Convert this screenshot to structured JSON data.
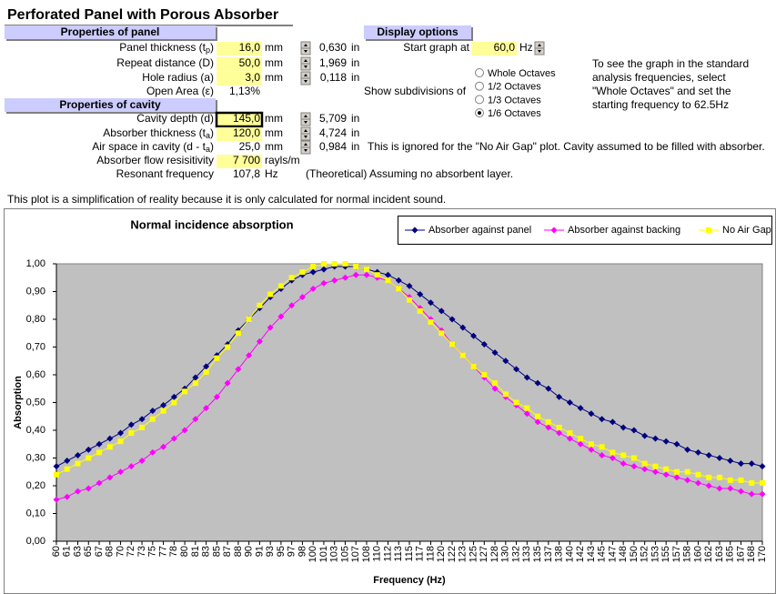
{
  "title": "Perforated Panel with Porous Absorber",
  "panel": {
    "header": "Properties of panel",
    "rows": [
      {
        "label": "Panel thickness (t",
        "sub": "p",
        "label_end": ")",
        "value": "16,0",
        "unit": "mm",
        "inches": "0,630",
        "inch_unit": "in"
      },
      {
        "label": "Repeat distance (D)",
        "value": "50,0",
        "unit": "mm",
        "inches": "1,969",
        "inch_unit": "in"
      },
      {
        "label": "Hole radius (a)",
        "value": "3,0",
        "unit": "mm",
        "inches": "0,118",
        "inch_unit": "in"
      },
      {
        "label": "Open Area (ε)",
        "value": "1,13%"
      }
    ]
  },
  "cavity": {
    "header": "Properties of cavity",
    "rows": [
      {
        "label": "Cavity depth (d)",
        "value": "145,0",
        "unit": "mm",
        "inches": "5,709",
        "inch_unit": "in"
      },
      {
        "label": "Absorber thickness (t",
        "sub": "a",
        "label_end": ")",
        "value": "120,0",
        "unit": "mm",
        "inches": "4,724",
        "inch_unit": "in"
      },
      {
        "label": "Air space in cavity (d - t",
        "sub": "a",
        "label_end": ")",
        "value": "25,0",
        "unit": "mm",
        "inches": "0,984",
        "inch_unit": "in",
        "note": "This is ignored for the \"No Air Gap\" plot.  Cavity assumed to be filled with absorber."
      },
      {
        "label": "Absorber flow resisitivity",
        "value": "7 700",
        "unit": "rayls/m"
      },
      {
        "label": "Resonant frequency",
        "value": "107,8",
        "unit": "Hz",
        "note": "(Theoretical) Assuming no absorbent layer."
      }
    ]
  },
  "display": {
    "header": "Display options",
    "start_label": "Start graph at",
    "start_value": "60,0",
    "start_unit": "Hz",
    "subdivisions_label": "Show subdivisions of",
    "options": [
      {
        "label": "Whole Octaves",
        "checked": false
      },
      {
        "label": "1/2 Octaves",
        "checked": false
      },
      {
        "label": "1/3 Octaves",
        "checked": false
      },
      {
        "label": "1/6 Octaves",
        "checked": true
      }
    ],
    "note_lines": [
      "To see the graph in the standard",
      "analysis frequencies, select",
      "\"Whole Octaves\" and set the",
      "starting frequency to 62.5Hz"
    ]
  },
  "footnote": "This plot is a simplification of reality because it is only calculated for normal incident sound.",
  "chart_data": {
    "type": "line",
    "title": "Normal incidence absorption",
    "x_label": "Frequency (Hz)",
    "y_label": "Absorption",
    "categories": [
      "60",
      "61",
      "63",
      "65",
      "67",
      "68",
      "70",
      "72",
      "73",
      "75",
      "77",
      "78",
      "80",
      "81",
      "83",
      "85",
      "87",
      "88",
      "90",
      "91",
      "93",
      "95",
      "97",
      "98",
      "100",
      "101",
      "103",
      "105",
      "107",
      "108",
      "110",
      "112",
      "113",
      "115",
      "117",
      "118",
      "120",
      "122",
      "123",
      "125",
      "127",
      "128",
      "130",
      "132",
      "133",
      "135",
      "137",
      "138",
      "140",
      "142",
      "143",
      "145",
      "147",
      "148",
      "150",
      "152",
      "153",
      "155",
      "157",
      "158",
      "160",
      "162",
      "163",
      "165",
      "167",
      "168",
      "170"
    ],
    "series": [
      {
        "name": "Absorber against panel",
        "color": "#000080",
        "marker": "diamond",
        "values": [
          0.27,
          0.29,
          0.31,
          0.33,
          0.35,
          0.37,
          0.39,
          0.42,
          0.44,
          0.47,
          0.49,
          0.52,
          0.55,
          0.59,
          0.63,
          0.67,
          0.71,
          0.76,
          0.8,
          0.84,
          0.88,
          0.91,
          0.94,
          0.96,
          0.97,
          0.98,
          0.99,
          0.99,
          0.99,
          0.98,
          0.97,
          0.96,
          0.94,
          0.92,
          0.89,
          0.86,
          0.83,
          0.8,
          0.77,
          0.74,
          0.71,
          0.68,
          0.65,
          0.62,
          0.59,
          0.57,
          0.55,
          0.52,
          0.5,
          0.48,
          0.46,
          0.44,
          0.43,
          0.41,
          0.4,
          0.38,
          0.37,
          0.36,
          0.35,
          0.33,
          0.32,
          0.31,
          0.3,
          0.29,
          0.28,
          0.28,
          0.27
        ]
      },
      {
        "name": "Absorber against backing",
        "color": "#ff00ff",
        "marker": "diamond",
        "values": [
          0.15,
          0.16,
          0.18,
          0.19,
          0.21,
          0.23,
          0.25,
          0.27,
          0.29,
          0.32,
          0.34,
          0.37,
          0.4,
          0.44,
          0.48,
          0.52,
          0.57,
          0.62,
          0.67,
          0.72,
          0.77,
          0.81,
          0.85,
          0.88,
          0.91,
          0.93,
          0.94,
          0.95,
          0.96,
          0.96,
          0.95,
          0.94,
          0.91,
          0.88,
          0.84,
          0.8,
          0.76,
          0.71,
          0.67,
          0.63,
          0.59,
          0.55,
          0.52,
          0.49,
          0.46,
          0.43,
          0.41,
          0.39,
          0.37,
          0.35,
          0.33,
          0.31,
          0.3,
          0.28,
          0.27,
          0.26,
          0.25,
          0.24,
          0.23,
          0.22,
          0.21,
          0.2,
          0.19,
          0.19,
          0.18,
          0.17,
          0.17
        ]
      },
      {
        "name": "No Air Gap",
        "color": "#ffff00",
        "marker": "square",
        "values": [
          0.24,
          0.26,
          0.28,
          0.3,
          0.32,
          0.34,
          0.36,
          0.39,
          0.41,
          0.44,
          0.47,
          0.5,
          0.54,
          0.57,
          0.61,
          0.66,
          0.7,
          0.75,
          0.8,
          0.85,
          0.89,
          0.92,
          0.95,
          0.97,
          0.99,
          1.0,
          1.0,
          1.0,
          0.99,
          0.98,
          0.96,
          0.94,
          0.91,
          0.87,
          0.83,
          0.79,
          0.75,
          0.71,
          0.67,
          0.63,
          0.6,
          0.57,
          0.53,
          0.5,
          0.48,
          0.45,
          0.43,
          0.41,
          0.39,
          0.37,
          0.35,
          0.34,
          0.32,
          0.31,
          0.3,
          0.28,
          0.27,
          0.26,
          0.25,
          0.25,
          0.24,
          0.23,
          0.23,
          0.22,
          0.22,
          0.21,
          0.21
        ]
      }
    ],
    "ylim": [
      0,
      1
    ],
    "yticks": [
      {
        "value": 0,
        "label": "0,00"
      },
      {
        "value": 0.1,
        "label": "0,10"
      },
      {
        "value": 0.2,
        "label": "0,20"
      },
      {
        "value": 0.3,
        "label": "0,30"
      },
      {
        "value": 0.4,
        "label": "0,40"
      },
      {
        "value": 0.5,
        "label": "0,50"
      },
      {
        "value": 0.6,
        "label": "0,60"
      },
      {
        "value": 0.7,
        "label": "0,70"
      },
      {
        "value": 0.8,
        "label": "0,80"
      },
      {
        "value": 0.9,
        "label": "0,90"
      },
      {
        "value": 1,
        "label": "1,00"
      }
    ],
    "grid": false,
    "plot_background": "#c0c0c0",
    "legend": "top-right"
  }
}
